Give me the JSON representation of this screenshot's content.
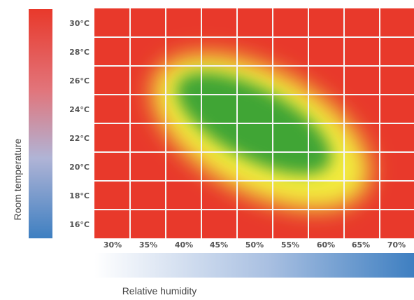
{
  "chart_data": {
    "type": "heatmap",
    "title": "",
    "xlabel": "Relative humidity",
    "ylabel": "Room temperature",
    "x_tick_labels": [
      "30%",
      "35%",
      "40%",
      "45%",
      "50%",
      "55%",
      "60%",
      "65%",
      "70%"
    ],
    "y_tick_labels": [
      "30°C",
      "28°C",
      "26°C",
      "24°C",
      "22°C",
      "20°C",
      "18°C",
      "16°C"
    ],
    "x_range": [
      27.5,
      72.5
    ],
    "y_range": [
      15,
      31
    ],
    "comfort_zone": {
      "center": {
        "humidity": 50,
        "temperature": 23
      },
      "optimal_band": "green",
      "transition_band": "yellow",
      "outside": "red"
    },
    "colors": {
      "red": "#e8392b",
      "yellow": "#f2ea3c",
      "green": "#3fa535",
      "cold_blue": "#3e7fc1",
      "warm_red": "#e8392b",
      "gridline": "#f5f5f5"
    },
    "legend": {
      "temperature_bar": "left vertical gradient, red (top) to blue (bottom)",
      "humidity_bar": "bottom horizontal gradient, white (left) to blue (right)"
    }
  }
}
